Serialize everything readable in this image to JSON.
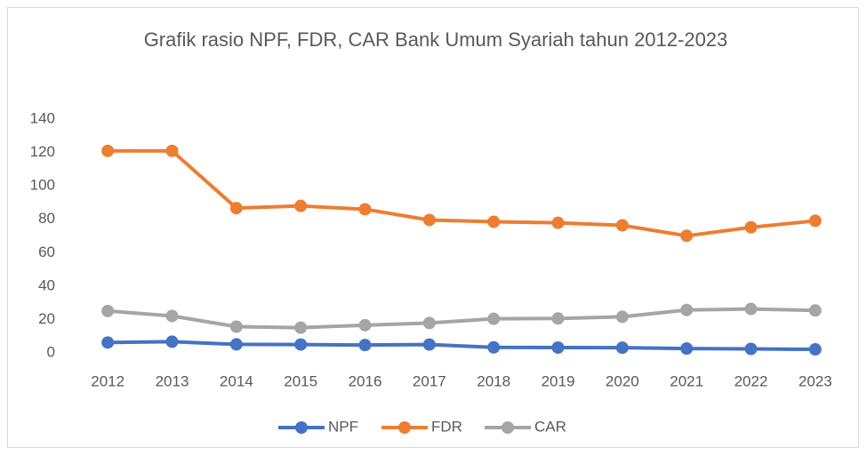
{
  "chart_data": {
    "type": "line",
    "title": "Grafik rasio NPF, FDR, CAR Bank Umum Syariah tahun 2012-2023",
    "categories": [
      "2012",
      "2013",
      "2014",
      "2015",
      "2016",
      "2017",
      "2018",
      "2019",
      "2020",
      "2021",
      "2022",
      "2023"
    ],
    "series": [
      {
        "name": "NPF",
        "color": "#4472c4",
        "values": [
          6.2,
          6.7,
          5.1,
          5.0,
          4.7,
          5.0,
          3.3,
          3.2,
          3.1,
          2.6,
          2.4,
          2.1
        ]
      },
      {
        "name": "FDR",
        "color": "#ed7d31",
        "values": [
          121,
          121,
          86.7,
          88,
          86,
          79.6,
          78.5,
          77.9,
          76.4,
          70.1,
          75.2,
          79.1
        ]
      },
      {
        "name": "CAR",
        "color": "#a5a5a5",
        "values": [
          25.1,
          22.1,
          15.7,
          15.1,
          16.6,
          17.9,
          20.4,
          20.6,
          21.6,
          25.7,
          26.3,
          25.4
        ]
      }
    ],
    "ylim": [
      0,
      140
    ],
    "yticks": [
      0,
      20,
      40,
      60,
      80,
      100,
      120,
      140
    ],
    "grid": false,
    "legend": "bottom"
  }
}
